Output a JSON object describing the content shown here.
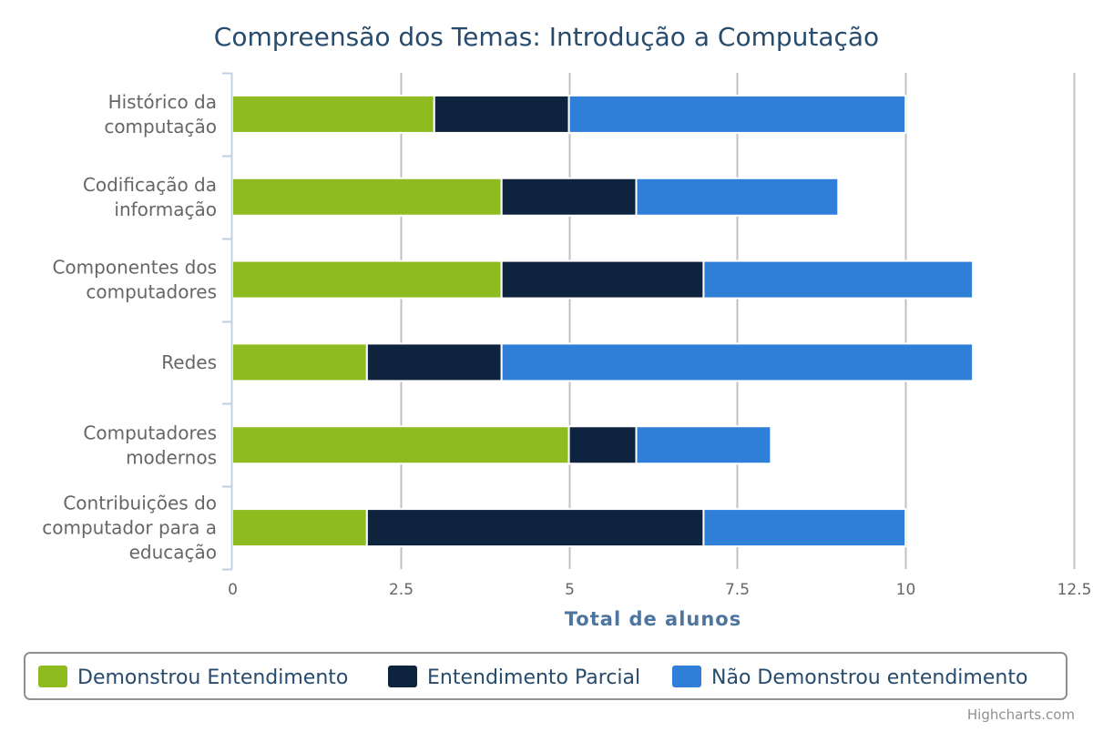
{
  "chart_data": {
    "type": "bar",
    "orientation": "horizontal",
    "stacked": true,
    "title": "Compreensão dos Temas: Introdução a Computação",
    "xlabel": "Total de alunos",
    "categories": [
      "Histórico da computação",
      "Codificação da informação",
      "Componentes dos computadores",
      "Redes",
      "Computadores modernos",
      "Contribuições do computador para a educação"
    ],
    "series": [
      {
        "name": "Demonstrou Entendimento",
        "color": "#8dbb20",
        "values": [
          3,
          4,
          4,
          2,
          5,
          2
        ]
      },
      {
        "name": "Entendimento Parcial",
        "color": "#0e233d",
        "values": [
          2,
          2,
          3,
          2,
          1,
          5
        ]
      },
      {
        "name": "Não Demonstrou entendimento",
        "color": "#2f7ed8",
        "values": [
          5,
          3,
          4,
          7,
          2,
          3
        ]
      }
    ],
    "xlim": [
      0,
      12.5
    ],
    "xticks": [
      "0",
      "2.5",
      "5",
      "7.5",
      "10",
      "12.5"
    ],
    "grid": true,
    "legend_position": "bottom",
    "credits": "Highcharts.com"
  }
}
